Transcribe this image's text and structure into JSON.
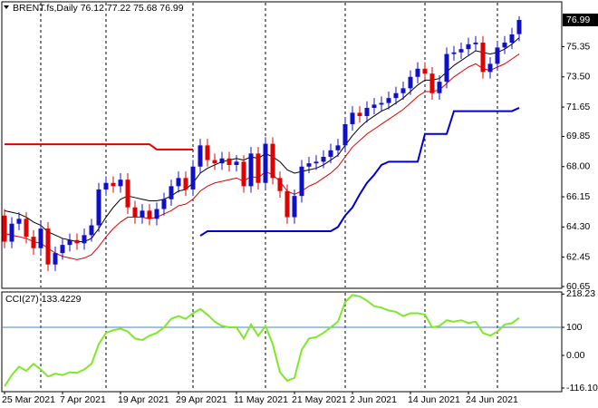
{
  "chart_data": [
    {
      "type": "candlestick",
      "title": "BRENT.fs,Daily",
      "categories": [
        "25 Mar 2021",
        null,
        null,
        null,
        null,
        null,
        null,
        null,
        "7 Apr 2021",
        null,
        null,
        null,
        null,
        null,
        null,
        null,
        "19 Apr 2021",
        null,
        null,
        null,
        null,
        null,
        null,
        null,
        "29 Apr 2021",
        null,
        null,
        null,
        null,
        null,
        null,
        null,
        "11 May 2021",
        null,
        null,
        null,
        null,
        null,
        null,
        null,
        "21 May 2021",
        null,
        null,
        null,
        null,
        null,
        null,
        null,
        "2 Jun 2021",
        null,
        null,
        null,
        null,
        null,
        null,
        null,
        "14 Jun 2021",
        null,
        null,
        null,
        null,
        null,
        null,
        null,
        "24 Jun 2021",
        null,
        null,
        null,
        null,
        null,
        null,
        null
      ],
      "open": [
        65.0,
        63.4,
        64.5,
        64.8,
        63.7,
        63.0,
        64.2,
        62.0,
        62.7,
        63.2,
        63.5,
        63.3,
        63.8,
        64.4,
        66.6,
        67.0,
        66.8,
        67.2,
        65.5,
        64.9,
        65.3,
        64.8,
        65.4,
        66.0,
        66.8,
        67.3,
        66.6,
        68.0,
        69.3,
        68.4,
        68.2,
        68.5,
        68.1,
        68.3,
        66.8,
        68.8,
        67.0,
        69.4,
        67.3,
        66.5,
        64.9,
        66.2,
        68.0,
        68.2,
        68.3,
        68.6,
        69.0,
        69.3,
        70.6,
        71.3,
        71.1,
        71.6,
        71.8,
        71.9,
        72.2,
        72.5,
        72.8,
        73.5,
        74.0,
        73.7,
        72.5,
        73.2,
        74.9,
        75.0,
        75.2,
        75.5,
        75.6,
        73.8,
        74.3,
        75.3,
        75.6,
        76.12
      ],
      "high": [
        65.4,
        64.9,
        65.2,
        65.2,
        64.1,
        64.6,
        64.6,
        63.1,
        63.6,
        63.9,
        63.9,
        64.2,
        64.8,
        67.0,
        67.4,
        67.4,
        67.6,
        67.6,
        65.9,
        65.7,
        65.7,
        65.8,
        66.4,
        67.2,
        67.7,
        67.7,
        68.4,
        69.7,
        69.7,
        68.8,
        68.9,
        68.9,
        68.7,
        68.7,
        69.2,
        69.2,
        69.8,
        69.8,
        67.7,
        66.9,
        66.6,
        68.4,
        68.6,
        68.7,
        69.0,
        69.4,
        69.7,
        71.0,
        71.7,
        71.7,
        72.0,
        72.2,
        72.3,
        72.6,
        72.9,
        73.2,
        73.9,
        74.4,
        74.4,
        74.1,
        73.6,
        75.3,
        75.4,
        75.6,
        75.9,
        76.0,
        76.0,
        74.7,
        75.7,
        76.0,
        76.5,
        77.22
      ],
      "low": [
        63.0,
        63.0,
        64.1,
        63.3,
        62.6,
        62.6,
        61.6,
        61.6,
        62.3,
        62.8,
        62.9,
        62.9,
        63.4,
        64.0,
        66.2,
        66.4,
        66.4,
        65.1,
        64.5,
        64.5,
        64.4,
        64.4,
        65.0,
        65.6,
        66.4,
        66.2,
        66.2,
        67.6,
        68.0,
        67.8,
        67.8,
        67.7,
        67.7,
        66.4,
        66.4,
        66.6,
        66.6,
        66.9,
        66.1,
        64.5,
        64.5,
        65.8,
        67.6,
        67.8,
        67.9,
        68.2,
        68.6,
        68.9,
        70.2,
        70.7,
        70.7,
        71.2,
        71.4,
        71.5,
        71.8,
        72.1,
        72.4,
        73.1,
        73.3,
        72.1,
        72.1,
        72.8,
        74.5,
        74.6,
        74.8,
        75.1,
        73.4,
        73.4,
        73.9,
        74.9,
        75.2,
        75.68
      ],
      "close": [
        63.4,
        64.5,
        64.8,
        63.7,
        63.0,
        64.2,
        62.0,
        62.7,
        63.2,
        63.5,
        63.3,
        63.8,
        64.4,
        66.6,
        67.0,
        66.8,
        67.2,
        65.5,
        64.9,
        65.3,
        64.8,
        65.4,
        66.0,
        66.8,
        67.3,
        66.6,
        68.0,
        69.3,
        68.4,
        68.2,
        68.5,
        68.1,
        68.3,
        66.8,
        68.8,
        67.0,
        69.4,
        67.3,
        66.5,
        64.9,
        66.2,
        68.0,
        68.2,
        68.3,
        68.6,
        69.0,
        69.3,
        70.6,
        71.3,
        71.1,
        71.6,
        71.8,
        71.9,
        72.2,
        72.5,
        72.8,
        73.5,
        74.0,
        73.7,
        72.5,
        73.2,
        74.9,
        75.0,
        75.2,
        75.5,
        75.6,
        73.8,
        74.3,
        75.3,
        75.6,
        76.1,
        76.99
      ],
      "up_color": "#1010c8",
      "down_color": "#e00000",
      "series": [
        {
          "color": "#000000",
          "width": 1,
          "values": [
            65.3,
            65.2,
            65.1,
            64.9,
            64.6,
            64.4,
            64.0,
            63.8,
            63.6,
            63.5,
            63.4,
            63.4,
            63.6,
            64.2,
            64.9,
            65.5,
            66.0,
            66.2,
            66.1,
            66.0,
            65.9,
            65.9,
            66.0,
            66.2,
            66.5,
            66.6,
            67.0,
            67.6,
            67.9,
            68.1,
            68.3,
            68.4,
            68.5,
            68.4,
            68.6,
            68.5,
            68.8,
            68.6,
            68.3,
            67.8,
            67.6,
            67.7,
            67.8,
            67.9,
            68.1,
            68.4,
            68.7,
            69.3,
            69.9,
            70.4,
            70.8,
            71.1,
            71.4,
            71.6,
            71.9,
            72.2,
            72.6,
            73.0,
            73.3,
            73.3,
            73.4,
            73.8,
            74.2,
            74.5,
            74.8,
            75.1,
            75.0,
            74.9,
            75.0,
            75.2,
            75.5,
            75.9
          ]
        },
        {
          "color": "#e00000",
          "width": 1,
          "values": [
            63.9,
            63.8,
            63.7,
            63.6,
            63.4,
            63.3,
            63.0,
            62.7,
            62.5,
            62.4,
            62.3,
            62.4,
            62.6,
            63.1,
            63.7,
            64.2,
            64.6,
            64.9,
            64.9,
            64.9,
            64.8,
            64.9,
            65.1,
            65.3,
            65.6,
            65.7,
            66.0,
            66.5,
            66.8,
            67.0,
            67.1,
            67.2,
            67.3,
            67.1,
            67.4,
            67.3,
            67.7,
            67.5,
            67.1,
            66.5,
            66.3,
            66.5,
            66.8,
            67.0,
            67.3,
            67.6,
            68.0,
            68.6,
            69.2,
            69.6,
            70.0,
            70.3,
            70.6,
            70.9,
            71.2,
            71.5,
            71.9,
            72.3,
            72.6,
            72.6,
            72.7,
            73.1,
            73.5,
            73.8,
            74.1,
            74.3,
            74.0,
            73.9,
            74.1,
            74.3,
            74.6,
            74.9
          ]
        },
        {
          "color": "#e00000",
          "width": 2,
          "values": [
            69.37,
            69.37,
            69.37,
            69.37,
            69.37,
            69.37,
            69.37,
            69.37,
            69.37,
            69.37,
            69.37,
            69.37,
            69.37,
            69.37,
            69.37,
            69.37,
            69.37,
            69.37,
            69.37,
            69.37,
            69.37,
            69.05,
            69.05,
            69.05,
            69.05,
            69.05,
            69.05,
            null,
            null,
            null,
            null,
            null,
            null,
            null,
            null,
            null,
            null,
            null,
            null,
            null,
            null,
            null,
            null,
            null,
            null,
            null,
            null,
            null,
            null,
            null,
            null,
            null,
            null,
            null,
            null,
            null,
            null,
            null,
            null,
            null,
            null,
            null,
            null,
            null,
            null,
            null,
            null,
            null,
            null,
            null,
            null,
            null
          ]
        },
        {
          "color": "#0000d0",
          "width": 2,
          "values": [
            null,
            null,
            null,
            null,
            null,
            null,
            null,
            null,
            null,
            null,
            null,
            null,
            null,
            null,
            null,
            null,
            null,
            null,
            null,
            null,
            null,
            null,
            null,
            null,
            null,
            null,
            null,
            63.76,
            64.04,
            64.04,
            64.04,
            64.04,
            64.04,
            64.04,
            64.04,
            64.04,
            64.04,
            64.04,
            64.04,
            64.04,
            64.04,
            64.04,
            64.04,
            64.04,
            64.04,
            64.04,
            64.3,
            65.0,
            65.5,
            66.3,
            67.0,
            67.5,
            68.1,
            68.3,
            68.3,
            68.3,
            68.3,
            68.3,
            70.0,
            70.0,
            70.0,
            70.0,
            71.4,
            71.4,
            71.4,
            71.4,
            71.4,
            71.4,
            71.4,
            71.4,
            71.4,
            71.6
          ]
        }
      ],
      "ylim": [
        60.54,
        78.1
      ],
      "yticks": [
        75.35,
        {
          "value": 73.5,
          "label": "73.50"
        },
        71.65,
        69.85,
        {
          "value": 68,
          "label": "68.00"
        },
        66.15,
        {
          "value": 64.3,
          "label": "64.30"
        },
        62.45,
        60.65
      ]
    },
    {
      "type": "line",
      "series": [
        {
          "name": "CCI(27)",
          "color": "#7ee82a",
          "values": [
            -110,
            -70,
            -40,
            -55,
            -30,
            -50,
            -75,
            -65,
            -70,
            -60,
            -62,
            -50,
            -30,
            40,
            80,
            90,
            95,
            85,
            60,
            55,
            70,
            80,
            100,
            130,
            140,
            130,
            150,
            165,
            145,
            120,
            105,
            100,
            100,
            60,
            110,
            70,
            105,
            40,
            -60,
            -90,
            -80,
            20,
            60,
            65,
            80,
            100,
            120,
            190,
            215,
            210,
            195,
            175,
            170,
            160,
            155,
            140,
            150,
            150,
            145,
            100,
            105,
            125,
            120,
            125,
            115,
            120,
            80,
            70,
            85,
            110,
            115,
            133.4229
          ]
        }
      ],
      "ylim": [
        -129,
        225.8
      ],
      "yticks": [
        218.23,
        100,
        {
          "value": 0,
          "label": "0.00"
        },
        -116.102
      ],
      "level": 100,
      "level_color": "#4a86b8"
    }
  ]
}
